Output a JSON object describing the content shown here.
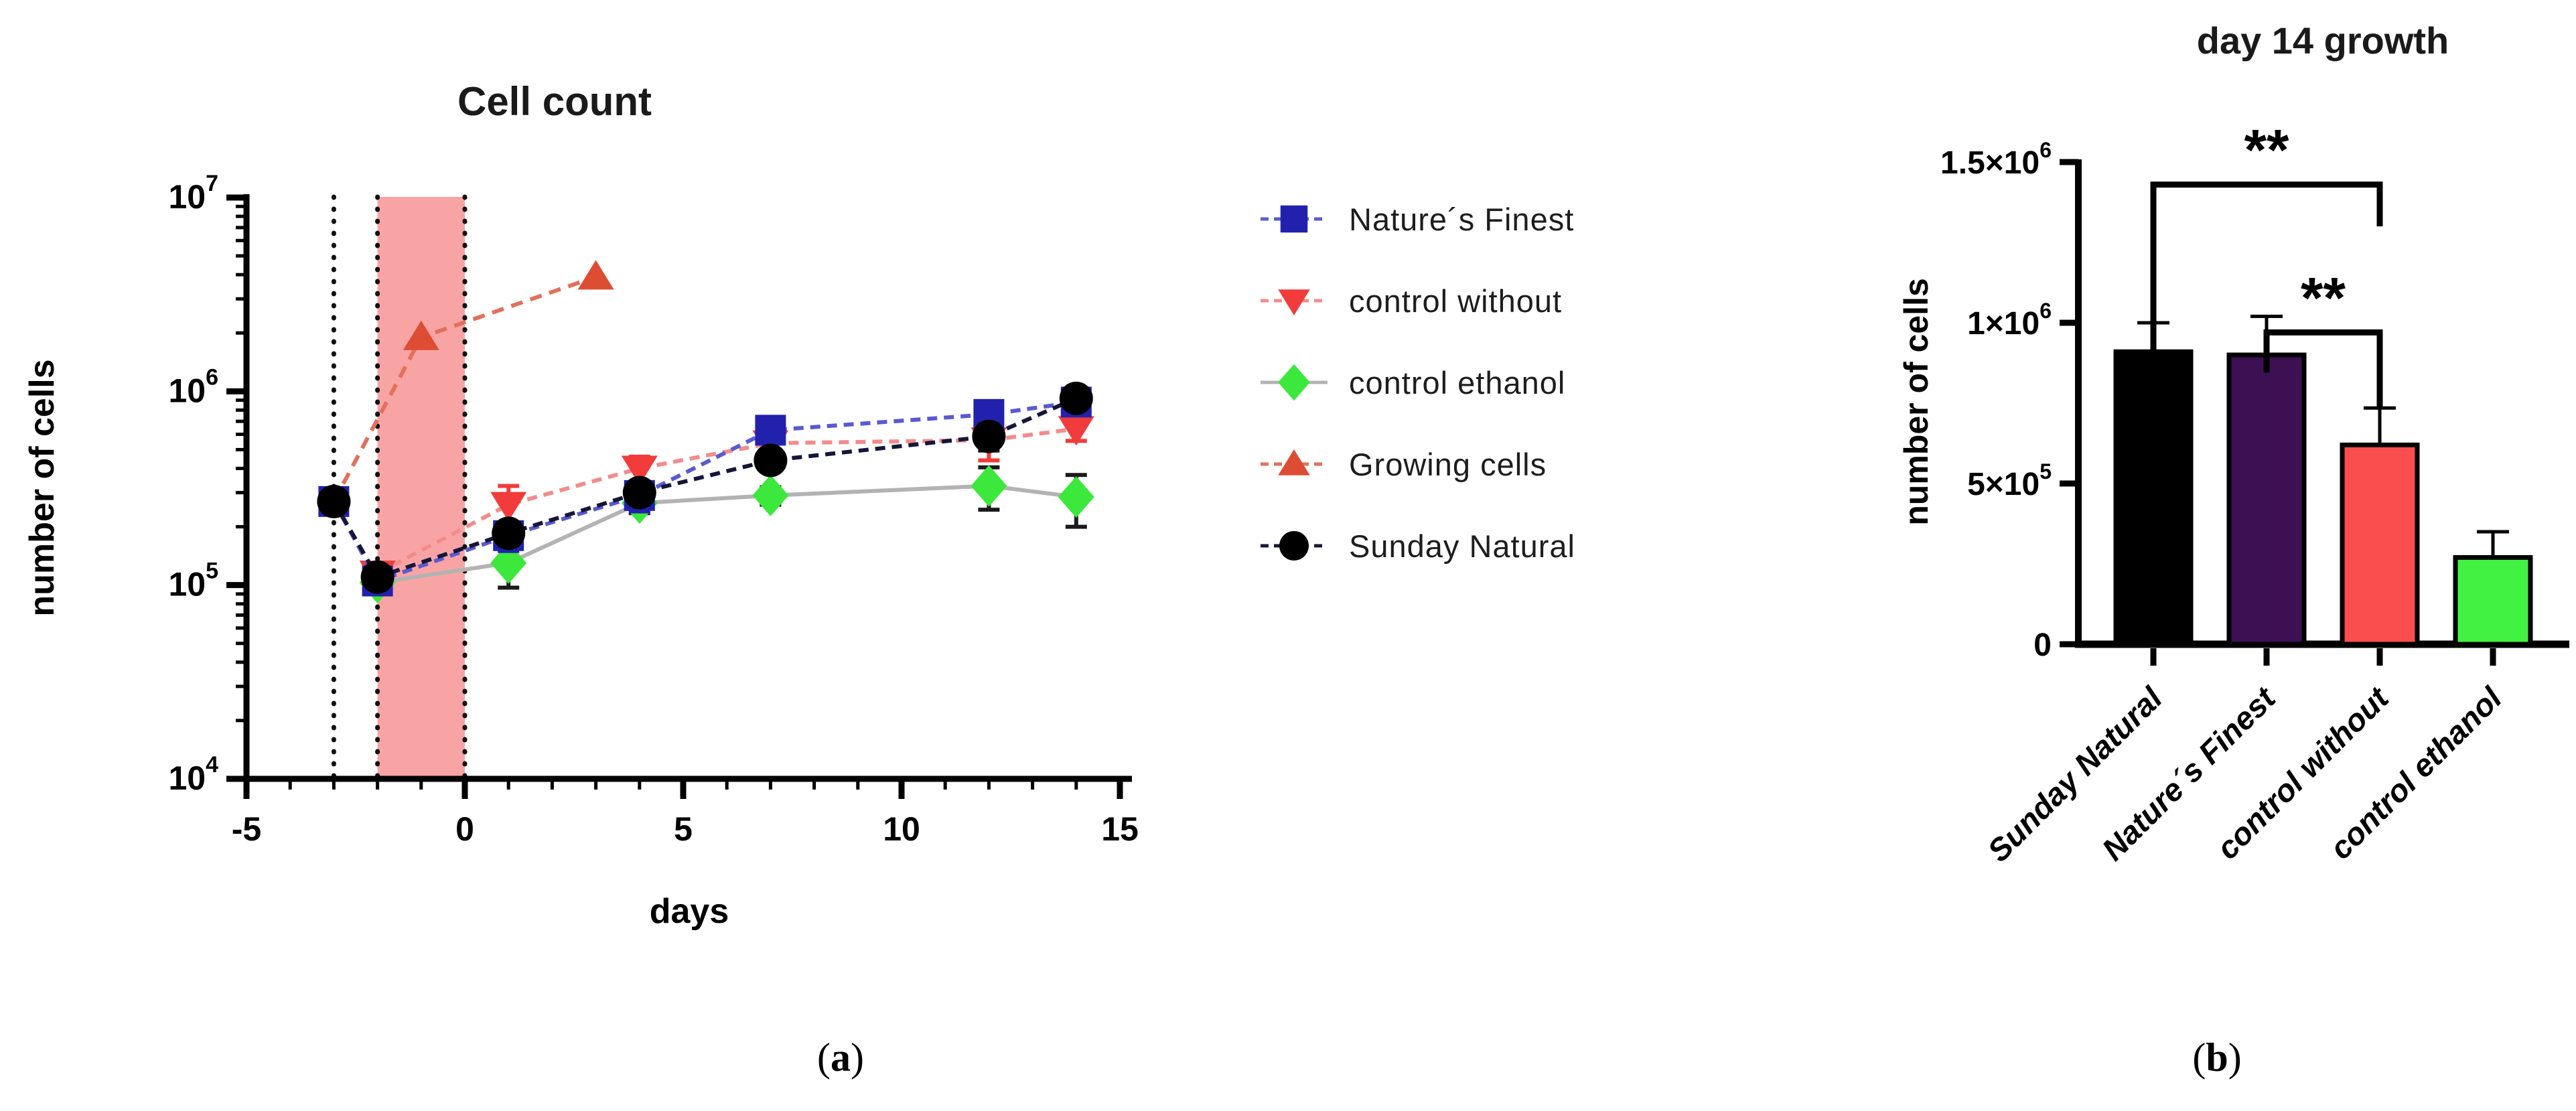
{
  "panel_labels": {
    "a": {
      "prefix": "(",
      "letter": "a",
      "suffix": ")"
    },
    "b": {
      "prefix": "(",
      "letter": "b",
      "suffix": ")"
    }
  },
  "chart_data": [
    {
      "id": "cell-count",
      "type": "line",
      "title": "Cell count",
      "xlabel": "days",
      "ylabel": "number of cells",
      "xlim": [
        -5,
        15.3
      ],
      "x_major_ticks": [
        -5,
        0,
        5,
        10,
        15
      ],
      "x_minor_tick_step": 1,
      "y_scale": "log10",
      "y_tick_base": "10",
      "y_log_exponents": [
        7,
        6,
        5,
        4
      ],
      "grid": false,
      "legend_position": "right",
      "shaded_region": {
        "x0": -2,
        "x1": 0,
        "color": "#F9A4A4"
      },
      "dotted_vlines": [
        -3,
        -2,
        0
      ],
      "series": [
        {
          "name": "Nature´s Finest",
          "marker": "square",
          "marker_color": "#2121AE",
          "line_color": "#5A5AD2",
          "line_dash": "15 10",
          "error_color": "#2121AE",
          "z": 4,
          "points": [
            {
              "x": -3,
              "y": 270000
            },
            {
              "x": -2,
              "y": 105000,
              "err": 12000
            },
            {
              "x": 1,
              "y": 180000,
              "err": 30000
            },
            {
              "x": 4,
              "y": 290000,
              "err": 50000
            },
            {
              "x": 7,
              "y": 630000,
              "err": 70000
            },
            {
              "x": 12,
              "y": 760000,
              "err": 100000
            },
            {
              "x": 14,
              "y": 880000,
              "err": 60000
            }
          ]
        },
        {
          "name": "control without",
          "marker": "triangle-down",
          "marker_color": "#F23B3B",
          "line_color": "#F28C8C",
          "line_dash": "15 10",
          "error_color": "#F23B3B",
          "z": 2,
          "points": [
            {
              "x": -2,
              "y": 115000,
              "err": 15000
            },
            {
              "x": 1,
              "y": 260000,
              "err": 65000
            },
            {
              "x": 4,
              "y": 400000,
              "err": 60000
            },
            {
              "x": 7,
              "y": 540000,
              "err": 50000
            },
            {
              "x": 12,
              "y": 560000,
              "err": 120000
            },
            {
              "x": 14,
              "y": 640000,
              "err": 85000
            }
          ]
        },
        {
          "name": "control ethanol",
          "marker": "diamond",
          "marker_color": "#3BE83B",
          "line_color": "#B3B3B3",
          "line_dash": null,
          "error_color": "#1A1A1A",
          "z": 3,
          "points": [
            {
              "x": -2,
              "y": 103000,
              "err": 12000
            },
            {
              "x": 1,
              "y": 130000,
              "err": 33000
            },
            {
              "x": 4,
              "y": 265000,
              "err": 30000
            },
            {
              "x": 7,
              "y": 290000,
              "err": 30000
            },
            {
              "x": 12,
              "y": 325000,
              "err": 80000
            },
            {
              "x": 14,
              "y": 285000,
              "err": 85000
            }
          ]
        },
        {
          "name": "Growing cells",
          "marker": "triangle-up",
          "marker_color": "#DD4D33",
          "line_color": "#E2705C",
          "line_dash": "18 12",
          "error_color": "#DD4D33",
          "z": 1,
          "points": [
            {
              "x": -3,
              "y": 270000,
              "no_marker": true
            },
            {
              "x": -1,
              "y": 1900000
            },
            {
              "x": 3,
              "y": 3900000
            }
          ]
        },
        {
          "name": "Sunday Natural",
          "marker": "circle",
          "marker_color": "#000000",
          "line_color": "#16163A",
          "line_dash": "15 10",
          "error_color": "#111111",
          "z": 5,
          "points": [
            {
              "x": -3,
              "y": 270000
            },
            {
              "x": -2,
              "y": 110000,
              "err": 12000
            },
            {
              "x": 1,
              "y": 185000,
              "err": 25000
            },
            {
              "x": 4,
              "y": 300000,
              "err": 40000
            },
            {
              "x": 7,
              "y": 440000,
              "err": 50000
            },
            {
              "x": 12,
              "y": 585000,
              "err": 90000
            },
            {
              "x": 14,
              "y": 920000,
              "err": 50000
            }
          ]
        }
      ]
    },
    {
      "id": "day14-growth",
      "type": "bar",
      "title": "day 14 growth",
      "ylabel": "number of cells",
      "ylim": [
        0,
        1500000
      ],
      "grid": false,
      "y_ticks": [
        {
          "v": 1500000,
          "base": "1.5×10",
          "exp": "6"
        },
        {
          "v": 1000000,
          "base": "1×10",
          "exp": "6"
        },
        {
          "v": 500000,
          "base": "5×10",
          "exp": "5"
        },
        {
          "v": 0,
          "base": "0",
          "exp": ""
        }
      ],
      "categories": [
        "Sunday Natural",
        "Nature´s Finest",
        "control without",
        "control ethanol"
      ],
      "values": [
        910000,
        900000,
        620000,
        270000
      ],
      "errors_plus": [
        90000,
        120000,
        115000,
        80000
      ],
      "bar_colors": [
        "#000000",
        "#3D1054",
        "#FA4D4D",
        "#41F241"
      ],
      "bar_outline": "#000000",
      "significance": [
        {
          "from": 0,
          "to": 2,
          "label": "**",
          "bar_y": 1430000,
          "leg_from_end": 800000,
          "leg_to_end": 1300000
        },
        {
          "from": 1,
          "to": 2,
          "label": "**",
          "bar_y": 970000,
          "leg_from_end": 845000,
          "leg_to_end": 730000
        }
      ]
    }
  ]
}
